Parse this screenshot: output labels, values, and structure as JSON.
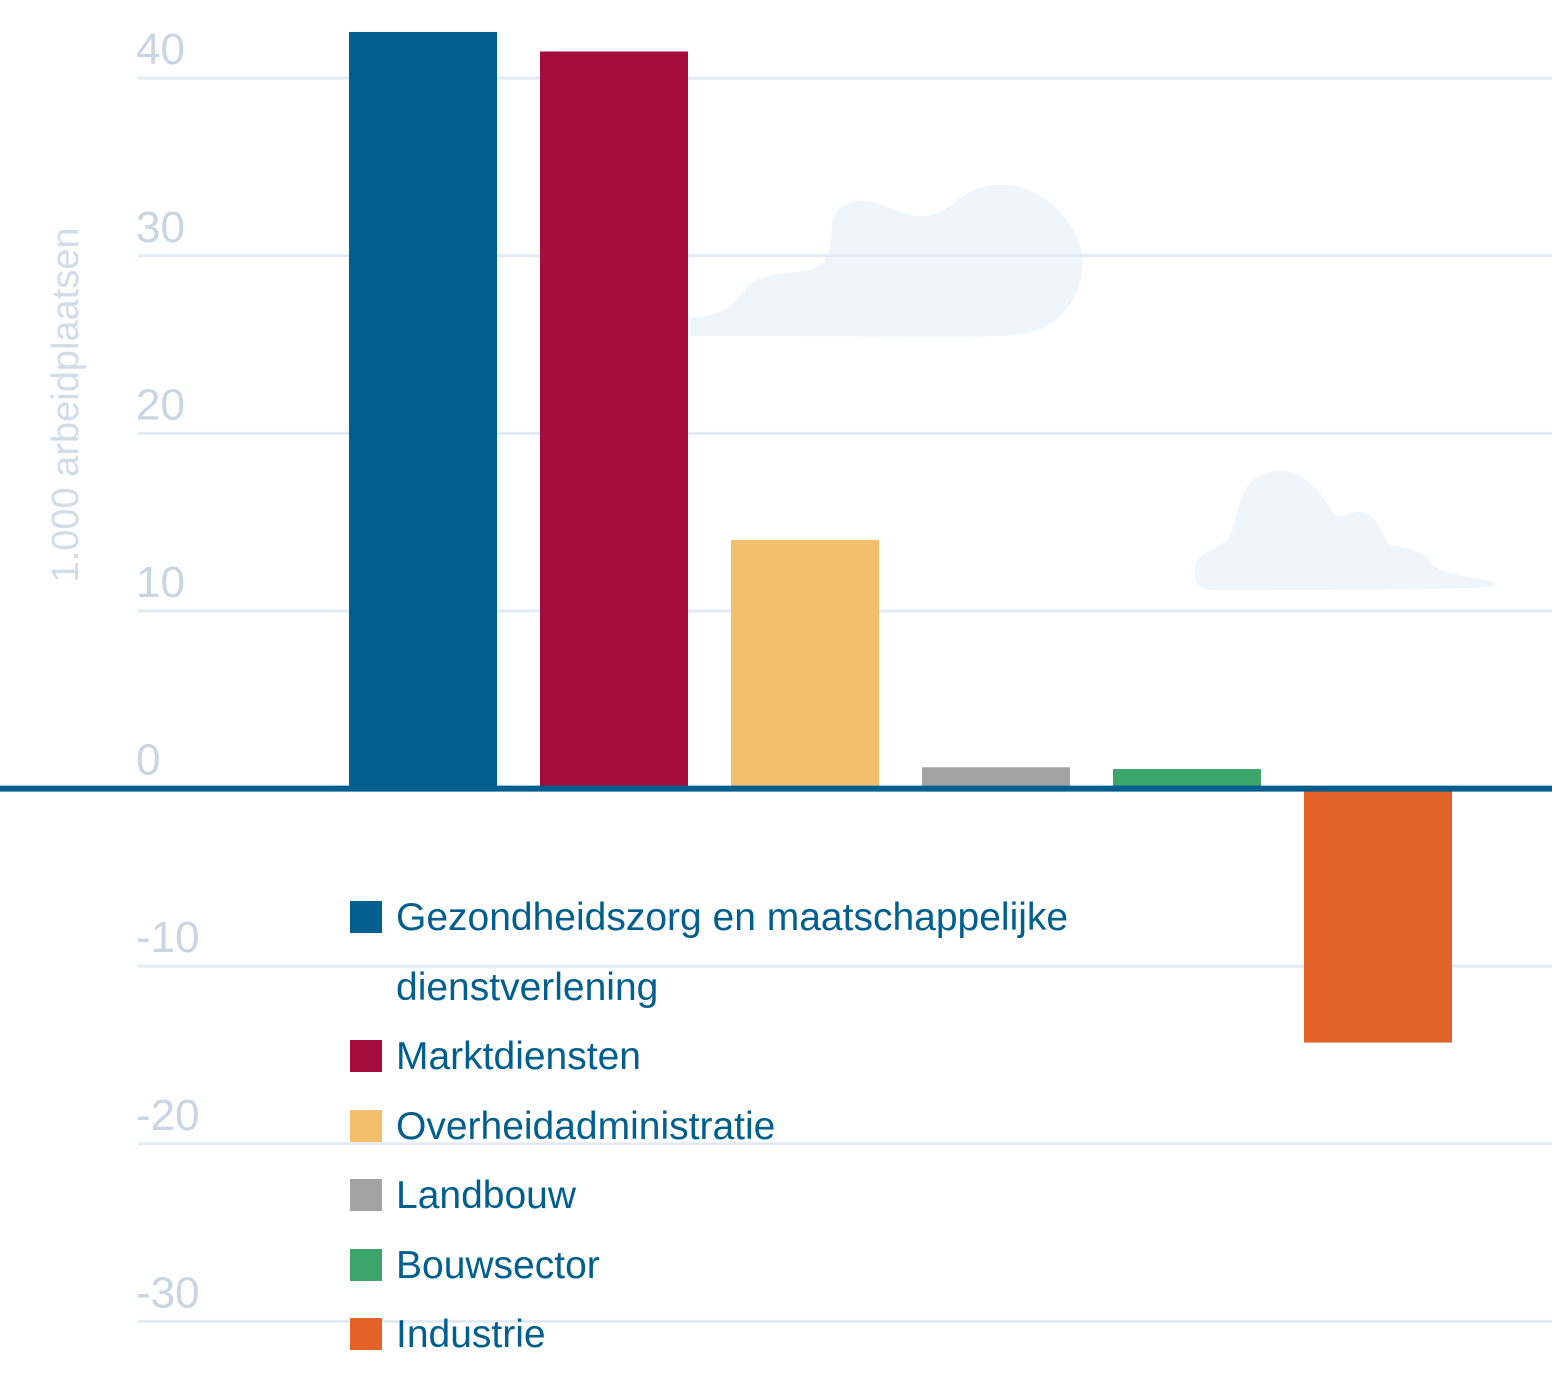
{
  "chart_data": {
    "type": "bar",
    "y_axis_label": "1.000 arbeidplaatsen",
    "categories": [
      "Gezondheidszorg en maatschappelijke dienstverlening",
      "Marktdiensten",
      "Overheidadministratie",
      "Landbouw",
      "Bouwsector",
      "Industrie"
    ],
    "values": [
      42.6,
      41.5,
      14.0,
      1.2,
      1.1,
      -14.3
    ],
    "colors": [
      "#005f8e",
      "#a50d3f",
      "#f3bf6a",
      "#a3a3a3",
      "#3ba56a",
      "#e26228"
    ],
    "ylim": [
      -33.3,
      44.4
    ],
    "yticks": [
      -30,
      -20,
      -10,
      0,
      10,
      20,
      30,
      40
    ],
    "grid": true
  }
}
